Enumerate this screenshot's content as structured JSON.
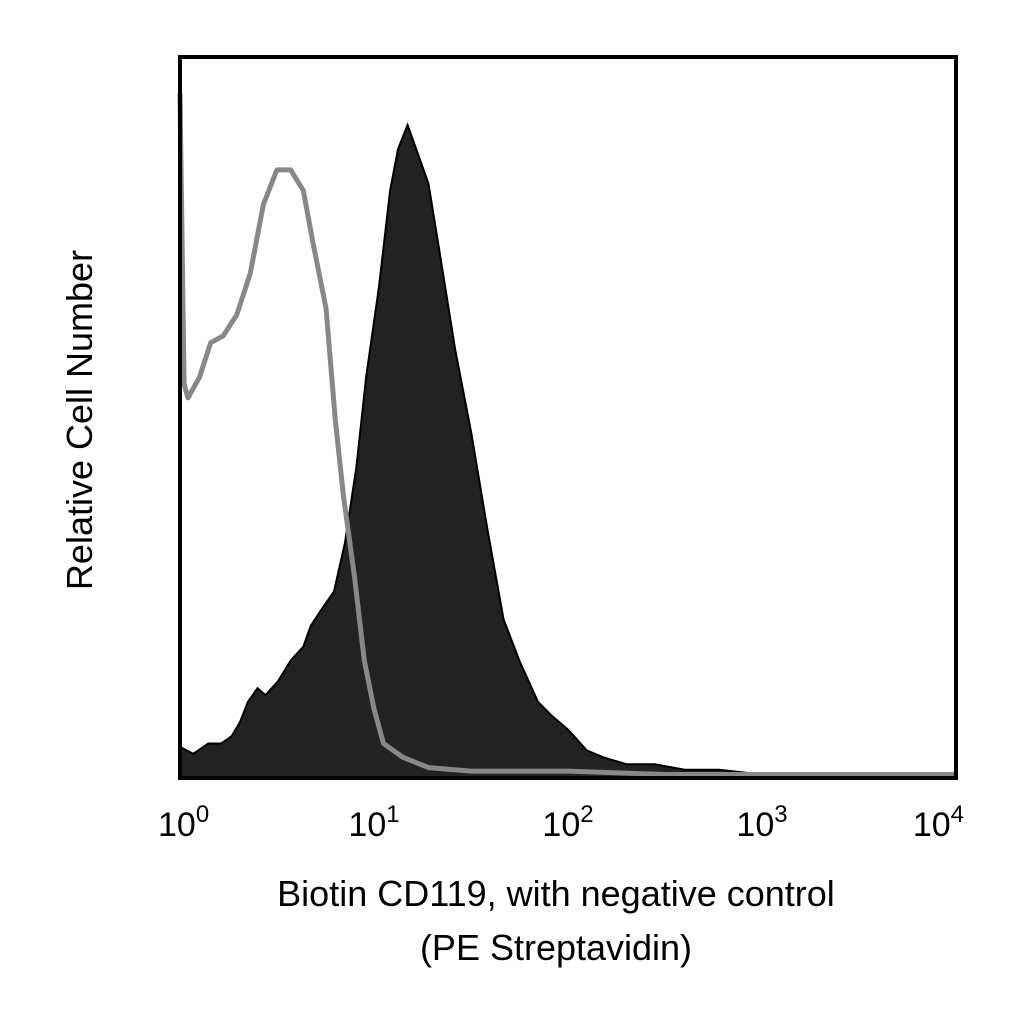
{
  "chart_data": {
    "type": "area",
    "xlabel": "Biotin CD119, with negative control",
    "xlabel_line2": "(PE Streptavidin)",
    "ylabel": "Relative Cell Number",
    "x_scale": "log",
    "xlim": [
      1,
      10000
    ],
    "ylim": [
      0,
      100
    ],
    "grid": false,
    "legend": "none",
    "x_ticks": [
      {
        "value": 1,
        "base": "10",
        "exp": "0"
      },
      {
        "value": 10,
        "base": "10",
        "exp": "1"
      },
      {
        "value": 100,
        "base": "10",
        "exp": "2"
      },
      {
        "value": 1000,
        "base": "10",
        "exp": "3"
      },
      {
        "value": 10000,
        "base": "10",
        "exp": "4"
      }
    ],
    "series": [
      {
        "role": "stained",
        "style": "filled",
        "color": "#222222",
        "x": [
          1,
          1.17,
          1.4,
          1.63,
          1.84,
          2.03,
          2.24,
          2.51,
          2.76,
          3.2,
          3.72,
          4.32,
          4.72,
          5.25,
          6.22,
          7.08,
          8.11,
          9.1,
          10.6,
          12.1,
          13.3,
          14.9,
          17,
          19.1,
          21.8,
          26.2,
          31.7,
          38.4,
          46.5,
          56.1,
          70.1,
          82.5,
          100,
          125,
          152,
          200,
          280,
          400,
          600,
          1000,
          1500,
          2000,
          4000,
          10000
        ],
        "y": [
          4.5,
          3.5,
          5,
          5,
          6,
          8,
          11,
          13,
          12,
          14,
          17,
          19,
          22,
          24,
          27,
          34,
          45,
          58,
          71,
          85,
          91,
          94.5,
          90,
          86,
          76,
          62,
          50,
          36,
          23,
          17,
          11,
          9,
          7,
          4,
          3,
          2,
          2,
          1.2,
          1.2,
          0.5,
          0.5,
          0.5,
          0,
          0
        ]
      },
      {
        "role": "negative control",
        "style": "outline",
        "color": "#888888",
        "x": [
          1,
          1.05,
          1.1,
          1.26,
          1.44,
          1.67,
          1.96,
          2.3,
          2.69,
          3.16,
          3.72,
          4.32,
          4.88,
          5.66,
          6.31,
          6.95,
          7.94,
          8.91,
          10,
          11.2,
          14.1,
          19.1,
          31.6,
          100,
          316,
          1000,
          10000
        ],
        "y": [
          99,
          57,
          55,
          58,
          63,
          64,
          67,
          73,
          83,
          88,
          88,
          85,
          77,
          68,
          52,
          41,
          29,
          17,
          10,
          5,
          3,
          1.5,
          1,
          1,
          0.5,
          0.5,
          0.5
        ]
      }
    ]
  }
}
